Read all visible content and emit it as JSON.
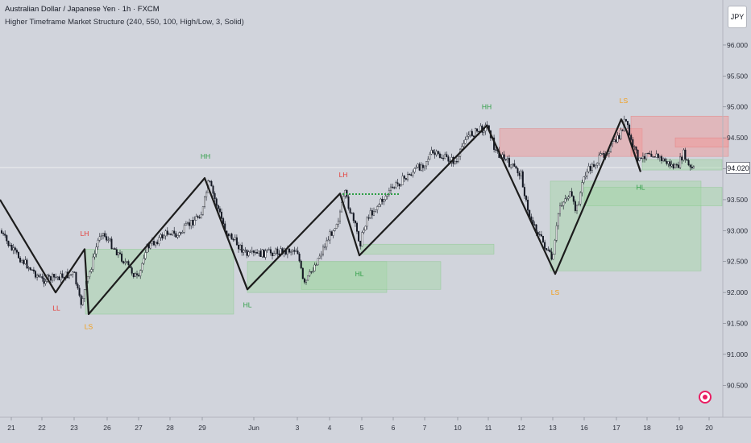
{
  "header": {
    "title": "Australian Dollar / Japanese Yen · 1h · FXCM",
    "indicator": "Higher Timeframe Market Structure (240, 550, 100, High/Low, 3, Solid)"
  },
  "price_scale": {
    "currency": "JPY",
    "current_price": "94.020",
    "labels": [
      "96.000",
      "95.500",
      "95.000",
      "94.500",
      "94.000",
      "93.500",
      "93.000",
      "92.500",
      "92.000",
      "91.500",
      "91.000",
      "90.500"
    ]
  },
  "time_axis": {
    "labels": [
      "21",
      "22",
      "23",
      "26",
      "27",
      "28",
      "29",
      "Jun",
      "3",
      "4",
      "5",
      "6",
      "7",
      "10",
      "11",
      "12",
      "13",
      "16",
      "17",
      "18",
      "19",
      "20"
    ]
  },
  "icons": {
    "currency_button": "currency-selector",
    "goto_realtime": "goto-realtime-icon"
  },
  "colors": {
    "background": "#d1d4dc",
    "structure_line": "#1c1c1c",
    "bull_zone": "#a5d6a7",
    "bear_zone": "#ef9a9a",
    "label_green": "#2e9e45",
    "label_red": "#e53935",
    "label_orange": "#f39c12"
  },
  "chart_data": {
    "type": "line",
    "title": "Australian Dollar / Japanese Yen · 1h · FXCM",
    "xlabel": "",
    "ylabel": "",
    "ylim": [
      90.0,
      96.5
    ],
    "grid": false,
    "x_axis": "trading sessions, May 21 – Jun 20",
    "series": [
      {
        "name": "Higher Timeframe Market Structure",
        "points": [
          {
            "x": "May 20",
            "y": 93.5
          },
          {
            "x": "May 22",
            "y": 92.0
          },
          {
            "x": "May 23",
            "y": 92.7
          },
          {
            "x": "May 23",
            "y": 91.65
          },
          {
            "x": "May 29",
            "y": 93.85
          },
          {
            "x": "May 31",
            "y": 92.05
          },
          {
            "x": "Jun 4",
            "y": 93.6
          },
          {
            "x": "Jun 5",
            "y": 92.6
          },
          {
            "x": "Jun 11",
            "y": 94.7
          },
          {
            "x": "Jun 13",
            "y": 92.3
          },
          {
            "x": "Jun 17",
            "y": 94.8
          },
          {
            "x": "Jun 17",
            "y": 94.6
          },
          {
            "x": "Jun 18",
            "y": 93.95
          }
        ]
      }
    ],
    "structure_labels": [
      {
        "text": "LL",
        "x": "May 22",
        "y": 91.75,
        "type": "bear"
      },
      {
        "text": "LS",
        "x": "May 23",
        "y": 91.45,
        "type": "sweep"
      },
      {
        "text": "LH",
        "x": "May 23",
        "y": 92.95,
        "type": "bear"
      },
      {
        "text": "HH",
        "x": "May 29",
        "y": 94.2,
        "type": "bull"
      },
      {
        "text": "HL",
        "x": "May 31",
        "y": 91.8,
        "type": "bull"
      },
      {
        "text": "LH",
        "x": "Jun 4",
        "y": 93.9,
        "type": "bear"
      },
      {
        "text": "HL",
        "x": "Jun 5",
        "y": 92.3,
        "type": "bull"
      },
      {
        "text": "HH",
        "x": "Jun 11",
        "y": 95.0,
        "type": "bull"
      },
      {
        "text": "LS",
        "x": "Jun 13",
        "y": 92.0,
        "type": "sweep"
      },
      {
        "text": "LS",
        "x": "Jun 17",
        "y": 95.1,
        "type": "sweep"
      },
      {
        "text": "HL",
        "x": "Jun 18",
        "y": 93.7,
        "type": "bull"
      }
    ],
    "zones": [
      {
        "type": "bull",
        "x0": "May 23",
        "x1": "May 31",
        "y0": 91.65,
        "y1": 92.7
      },
      {
        "type": "bull",
        "x0": "May 31",
        "x1": "Jun 5",
        "y0": 92.0,
        "y1": 92.5
      },
      {
        "type": "bull",
        "x0": "Jun 4",
        "x1": "Jun 10",
        "y0": 92.05,
        "y1": 92.5
      },
      {
        "type": "bull",
        "x0": "Jun 5",
        "x1": "Jun 10",
        "y0": 92.62,
        "y1": 92.78
      },
      {
        "type": "bull",
        "x0": "Jun 13",
        "x1": "Jun 19",
        "y0": 92.35,
        "y1": 93.8
      },
      {
        "type": "bull",
        "x0": "Jun 17",
        "x1": "Jun 19",
        "y0": 93.4,
        "y1": 93.7
      },
      {
        "type": "bull",
        "x0": "Jun 18",
        "x1": "Jun 19",
        "y0": 93.98,
        "y1": 94.15
      },
      {
        "type": "bear",
        "x0": "Jun 11",
        "x1": "Jun 17",
        "y0": 94.2,
        "y1": 94.65
      },
      {
        "type": "bear",
        "x0": "Jun 17",
        "x1": "Jun 20",
        "y0": 94.2,
        "y1": 94.85
      },
      {
        "type": "bear",
        "x0": "Jun 18",
        "x1": "Jun 20",
        "y0": 94.35,
        "y1": 94.5
      }
    ],
    "price_path": [
      {
        "x": "May 20",
        "y": 93.0
      },
      {
        "x": "May 21",
        "y": 92.7
      },
      {
        "x": "May 22",
        "y": 92.2
      },
      {
        "x": "May 23",
        "y": 92.3
      },
      {
        "x": "May 23",
        "y": 91.8
      },
      {
        "x": "May 24",
        "y": 92.6
      },
      {
        "x": "May 24",
        "y": 93.0
      },
      {
        "x": "May 27",
        "y": 92.2
      },
      {
        "x": "May 27",
        "y": 92.7
      },
      {
        "x": "May 28",
        "y": 93.0
      },
      {
        "x": "May 28",
        "y": 92.9
      },
      {
        "x": "May 29",
        "y": 93.3
      },
      {
        "x": "May 29",
        "y": 93.8
      },
      {
        "x": "May 30",
        "y": 93.0
      },
      {
        "x": "May 31",
        "y": 92.6
      },
      {
        "x": "Jun 3",
        "y": 92.7
      },
      {
        "x": "Jun 3",
        "y": 92.1
      },
      {
        "x": "Jun 4",
        "y": 93.2
      },
      {
        "x": "Jun 4",
        "y": 93.6
      },
      {
        "x": "Jun 5",
        "y": 92.8
      },
      {
        "x": "Jun 5",
        "y": 93.2
      },
      {
        "x": "Jun 6",
        "y": 93.7
      },
      {
        "x": "Jun 7",
        "y": 94.1
      },
      {
        "x": "Jun 7",
        "y": 94.25
      },
      {
        "x": "Jun 10",
        "y": 94.1
      },
      {
        "x": "Jun 10",
        "y": 94.5
      },
      {
        "x": "Jun 11",
        "y": 94.7
      },
      {
        "x": "Jun 11",
        "y": 94.3
      },
      {
        "x": "Jun 12",
        "y": 93.9
      },
      {
        "x": "Jun 12",
        "y": 93.3
      },
      {
        "x": "Jun 13",
        "y": 92.5
      },
      {
        "x": "Jun 13",
        "y": 93.4
      },
      {
        "x": "Jun 14",
        "y": 93.6
      },
      {
        "x": "Jun 14",
        "y": 93.3
      },
      {
        "x": "Jun 16",
        "y": 93.9
      },
      {
        "x": "Jun 17",
        "y": 94.5
      },
      {
        "x": "Jun 17",
        "y": 94.8
      },
      {
        "x": "Jun 17",
        "y": 94.4
      },
      {
        "x": "Jun 18",
        "y": 94.1
      },
      {
        "x": "Jun 18",
        "y": 94.3
      },
      {
        "x": "Jun 19",
        "y": 94.0
      },
      {
        "x": "Jun 19",
        "y": 94.25
      },
      {
        "x": "Jun 19",
        "y": 94.0
      }
    ]
  }
}
